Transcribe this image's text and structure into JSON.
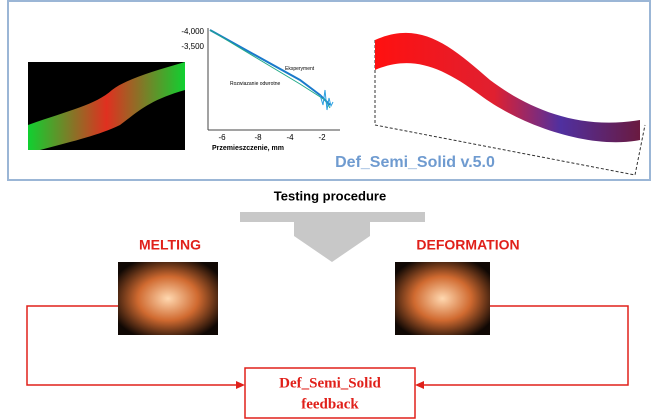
{
  "banner": {
    "plot": {
      "y_tick_labels": [
        "-4,000",
        "-3,500"
      ],
      "x_tick_labels": [
        "-6",
        "-8",
        "-4",
        "-2"
      ],
      "x_axis_label": "Przemieszczenie, mm",
      "legend": [
        "Eksperyment",
        "Rozwiazanie odwrotne"
      ]
    },
    "software_name": "Def_Semi_Solid v.5.0"
  },
  "caption": "Testing procedure",
  "steps": [
    {
      "label": "MELTING"
    },
    {
      "label": "DEFORMATION"
    }
  ],
  "feedback": {
    "lines": [
      "Def_Semi_Solid",
      "feedback"
    ]
  }
}
